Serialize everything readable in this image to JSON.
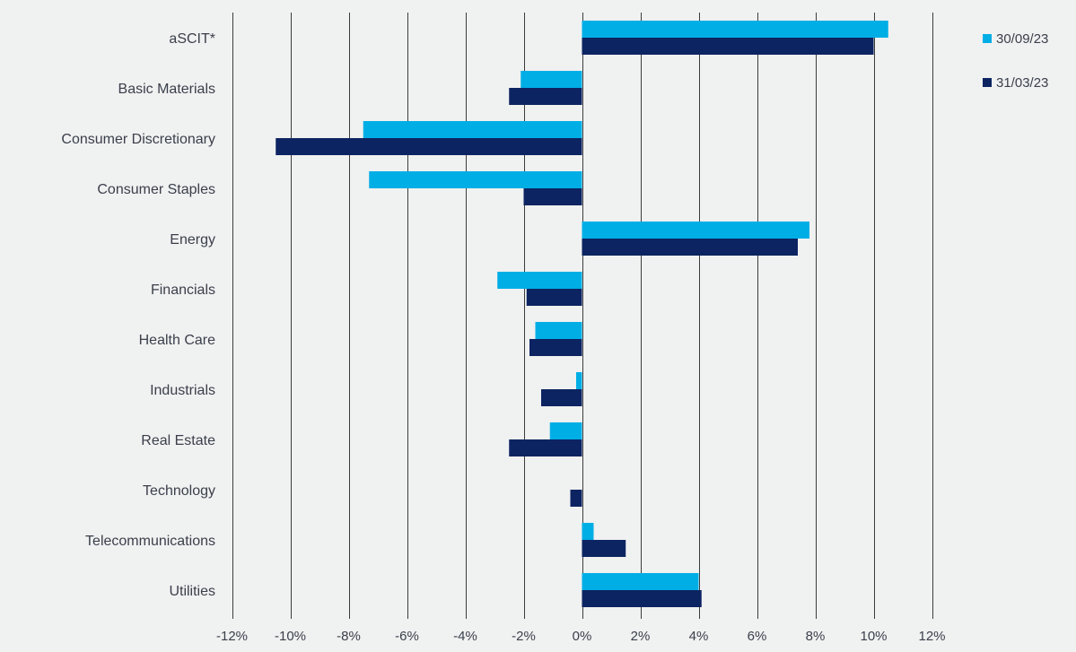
{
  "chart_data": {
    "type": "bar",
    "orientation": "horizontal",
    "categories": [
      "aSCIT*",
      "Basic Materials",
      "Consumer Discretionary",
      "Consumer Staples",
      "Energy",
      "Financials",
      "Health Care",
      "Industrials",
      "Real Estate",
      "Technology",
      "Telecommunications",
      "Utilities"
    ],
    "series": [
      {
        "name": "30/09/23",
        "color": "#00aee6",
        "values": [
          10.5,
          -2.1,
          -7.5,
          -7.3,
          7.8,
          -2.9,
          -1.6,
          -0.2,
          -1.1,
          0.0,
          0.4,
          4.0
        ]
      },
      {
        "name": "31/03/23",
        "color": "#0c2461",
        "values": [
          10.0,
          -2.5,
          -10.5,
          -2.0,
          7.4,
          -1.9,
          -1.8,
          -1.4,
          -2.5,
          -0.4,
          1.5,
          4.1
        ]
      }
    ],
    "xlim": [
      -12,
      12
    ],
    "x_ticks": [
      -12,
      -10,
      -8,
      -6,
      -4,
      -2,
      0,
      2,
      4,
      6,
      8,
      10,
      12
    ],
    "x_tick_labels": [
      "-12%",
      "-10%",
      "-8%",
      "-6%",
      "-4%",
      "-2%",
      "0%",
      "2%",
      "4%",
      "6%",
      "8%",
      "10%",
      "12%"
    ],
    "grid": "vertical",
    "legend_position": "top-right",
    "title": "",
    "xlabel": "",
    "ylabel": ""
  },
  "colors": {
    "background": "#f0f1f1",
    "gridline": "#3c3c3c",
    "text": "#3a3f4a"
  }
}
